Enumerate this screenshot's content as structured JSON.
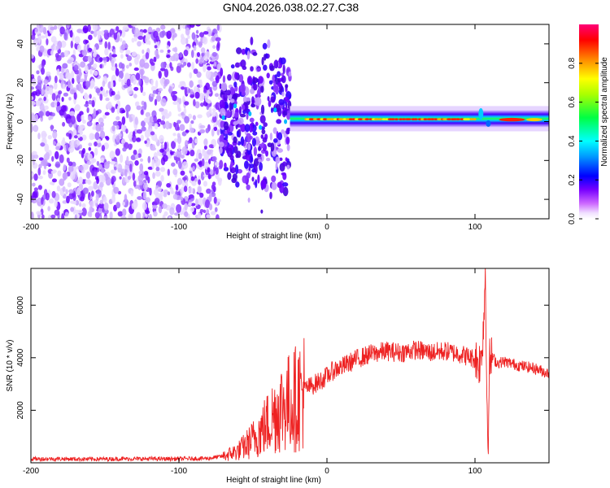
{
  "title": "GN04.2026.038.02.27.C38",
  "chart_data": [
    {
      "type": "heatmap",
      "title": "GN04.2026.038.02.27.C38",
      "xlabel": "Height of straight line (km)",
      "ylabel": "Frequency (Hz)",
      "xlim": [
        -200,
        150
      ],
      "ylim": [
        -50,
        50
      ],
      "x_ticks": [
        -200,
        -100,
        0,
        100
      ],
      "y_ticks": [
        -40,
        -20,
        0,
        20,
        40
      ],
      "colorbar": {
        "label": "Normalized spectral amplitude",
        "range": [
          0,
          1
        ],
        "ticks": [
          0.0,
          0.2,
          0.4,
          0.6,
          0.8
        ],
        "colormap": "hsv-rainbow",
        "colors": [
          "#ffffff",
          "#e0ccff",
          "#8800ff",
          "#0000ff",
          "#00ccff",
          "#00ff66",
          "#ffff00",
          "#ff8800",
          "#ff0000",
          "#ff0077"
        ]
      },
      "regions": [
        {
          "x_start": -200,
          "x_end": -72,
          "description_level": 0.1
        },
        {
          "x_start": -72,
          "x_end": -25,
          "description_level": 0.2
        },
        {
          "x_start": -25,
          "x_end": 150,
          "center_frequency_hz": 1,
          "peak_level": 0.95
        }
      ]
    },
    {
      "type": "line",
      "xlabel": "Height of straight line (km)",
      "ylabel": "SNR (10 * v/v)",
      "xlim": [
        -200,
        150
      ],
      "ylim": [
        0,
        7400
      ],
      "x_ticks": [
        -200,
        -100,
        0,
        100
      ],
      "y_ticks": [
        2000,
        4000,
        6000
      ],
      "series": [
        {
          "color": "#ee2222",
          "x": [
            -200,
            -180,
            -160,
            -140,
            -120,
            -100,
            -80,
            -70,
            -60,
            -55,
            -50,
            -45,
            -40,
            -35,
            -30,
            -25,
            -20,
            -15,
            -10,
            -5,
            0,
            5,
            10,
            15,
            20,
            25,
            30,
            40,
            50,
            60,
            70,
            80,
            90,
            100,
            104,
            106,
            107,
            108,
            109,
            110,
            112,
            115,
            120,
            130,
            140,
            150
          ],
          "y": [
            150,
            150,
            140,
            150,
            150,
            150,
            170,
            250,
            450,
            650,
            900,
            1200,
            1500,
            1900,
            2200,
            2300,
            2500,
            2800,
            2950,
            3100,
            3300,
            3550,
            3650,
            3800,
            3950,
            4050,
            4150,
            4250,
            4200,
            4300,
            4200,
            4250,
            4150,
            3950,
            3800,
            5500,
            7400,
            2500,
            1100,
            3900,
            4000,
            3800,
            3850,
            3700,
            3600,
            3400
          ]
        }
      ]
    }
  ]
}
